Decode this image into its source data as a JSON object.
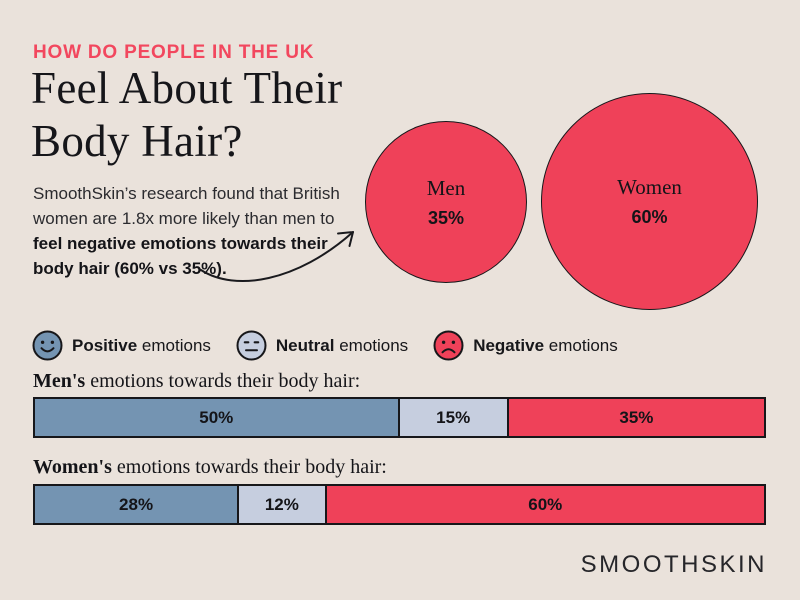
{
  "page": {
    "background": "#EAE2DB"
  },
  "colors": {
    "positive": "#7494B2",
    "neutral": "#C6CEDF",
    "negative": "#EF4159",
    "accent_red": "#F2475E",
    "ink": "#17171A"
  },
  "header": {
    "eyebrow": "HOW DO PEOPLE IN THE UK",
    "title_line1": "Feel About Their",
    "title_line2": "Body Hair?",
    "intro_lines_regular": [
      "SmoothSkin’s research found that British",
      "women are 1.8x more likely than men to"
    ],
    "intro_lines_bold": [
      "feel negative emotions towards their",
      "body hair (60% vs 35%)."
    ]
  },
  "bubbles": {
    "men": {
      "label": "Men",
      "value": "35%"
    },
    "women": {
      "label": "Women",
      "value": "60%"
    }
  },
  "legend": [
    {
      "emphasis": "Positive",
      "rest": " emotions",
      "color": "#7494B2",
      "icon": "happy-face-icon"
    },
    {
      "emphasis": "Neutral",
      "rest": " emotions",
      "color": "#C6CEDF",
      "icon": "neutral-face-icon"
    },
    {
      "emphasis": "Negative",
      "rest": " emotions",
      "color": "#EF4159",
      "icon": "sad-face-icon"
    }
  ],
  "bars": {
    "men": {
      "title_bold": "Men's",
      "title_rest": " emotions towards their body hair:",
      "segments": [
        {
          "label": "50%",
          "pct": 50,
          "color": "#7494B2"
        },
        {
          "label": "15%",
          "pct": 15,
          "color": "#C6CEDF"
        },
        {
          "label": "35%",
          "pct": 35,
          "color": "#EF4159"
        }
      ]
    },
    "women": {
      "title_bold": "Women's",
      "title_rest": " emotions towards their body hair:",
      "segments": [
        {
          "label": "28%",
          "pct": 28,
          "color": "#7494B2"
        },
        {
          "label": "12%",
          "pct": 12,
          "color": "#C6CEDF"
        },
        {
          "label": "60%",
          "pct": 60,
          "color": "#EF4159"
        }
      ]
    }
  },
  "footer": {
    "brand": "SMOOTHSKIN"
  },
  "chart_data": [
    {
      "type": "bubble",
      "title": "Share feeling negative emotions towards their body hair (UK)",
      "categories": [
        "Men",
        "Women"
      ],
      "values": [
        35,
        60
      ],
      "unit": "%",
      "note": "Women are 1.8x more likely than men to feel negative emotions towards their body hair (60% vs 35%).",
      "bubble_color": "#EF4159"
    },
    {
      "type": "bar",
      "title": "Men's emotions towards their body hair:",
      "categories": [
        "Positive emotions",
        "Neutral emotions",
        "Negative emotions"
      ],
      "values": [
        50,
        15,
        35
      ],
      "unit": "%",
      "colors": [
        "#7494B2",
        "#C6CEDF",
        "#EF4159"
      ],
      "layout": "stacked-horizontal-100pct"
    },
    {
      "type": "bar",
      "title": "Women's emotions towards their body hair:",
      "categories": [
        "Positive emotions",
        "Neutral emotions",
        "Negative emotions"
      ],
      "values": [
        28,
        12,
        60
      ],
      "unit": "%",
      "colors": [
        "#7494B2",
        "#C6CEDF",
        "#EF4159"
      ],
      "layout": "stacked-horizontal-100pct"
    }
  ]
}
